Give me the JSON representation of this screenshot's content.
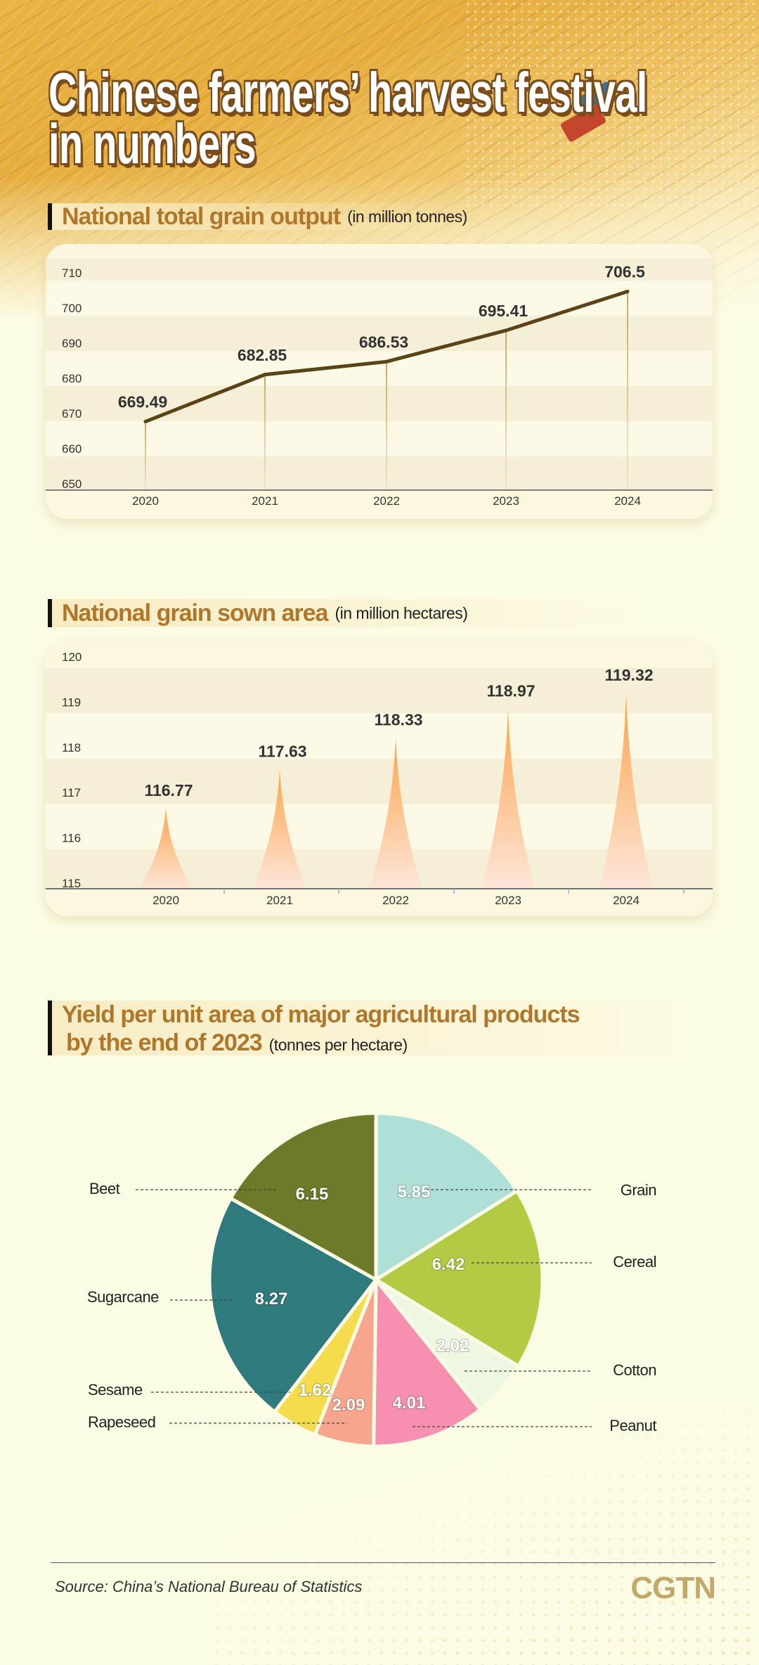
{
  "header": {
    "title_line1": "Chinese farmers’ harvest festival",
    "title_line2": "in numbers"
  },
  "sections": {
    "output": {
      "title": "National total grain output",
      "unit": "(in million tonnes)"
    },
    "area": {
      "title": "National grain sown area",
      "unit": "(in million hectares)"
    },
    "yield": {
      "title_line1": "Yield per unit area of major agricultural products",
      "title_line2": "by the end of 2023",
      "unit": "(tonnes per hectare)"
    }
  },
  "chart_data": [
    {
      "type": "line",
      "title": "National total grain output",
      "ylabel": "(in million tonnes)",
      "categories": [
        "2020",
        "2021",
        "2022",
        "2023",
        "2024"
      ],
      "values": [
        669.49,
        682.85,
        686.53,
        695.41,
        706.5
      ],
      "value_labels": [
        "669.49",
        "682.85",
        "686.53",
        "695.41",
        "706.5"
      ],
      "yticks": [
        "650",
        "660",
        "670",
        "680",
        "690",
        "700",
        "710"
      ],
      "ylim": [
        650,
        710
      ],
      "grid": "banded",
      "colors": {
        "line": "#5a4317",
        "drop": "#c9a96a"
      }
    },
    {
      "type": "bar",
      "title": "National grain sown area",
      "ylabel": "(in million hectares)",
      "categories": [
        "2020",
        "2021",
        "2022",
        "2023",
        "2024"
      ],
      "values": [
        116.77,
        117.63,
        118.33,
        118.97,
        119.32
      ],
      "value_labels": [
        "116.77",
        "117.63",
        "118.33",
        "118.97",
        "119.32"
      ],
      "yticks": [
        "115",
        "116",
        "117",
        "118",
        "119",
        "120"
      ],
      "ylim": [
        115,
        120
      ],
      "grid": "banded",
      "colors": {
        "top": "#fda44b",
        "bottom": "#fde6da"
      }
    },
    {
      "type": "pie",
      "title": "Yield per unit area of major agricultural products by the end of 2023",
      "unit": "(tonnes per hectare)",
      "slices": [
        {
          "label": "Grain",
          "value": 5.85,
          "value_label": "5.85",
          "color": "#aee0d8"
        },
        {
          "label": "Cereal",
          "value": 6.42,
          "value_label": "6.42",
          "color": "#b3cb44"
        },
        {
          "label": "Cotton",
          "value": 2.02,
          "value_label": "2.02",
          "color": "#eef7e2"
        },
        {
          "label": "Peanut",
          "value": 4.01,
          "value_label": "4.01",
          "color": "#f78fb0"
        },
        {
          "label": "Rapeseed",
          "value": 2.09,
          "value_label": "2.09",
          "color": "#f7a58c"
        },
        {
          "label": "Sesame",
          "value": 1.62,
          "value_label": "1.62",
          "color": "#f4dc4c"
        },
        {
          "label": "Sugarcane",
          "value": 8.27,
          "value_label": "8.27",
          "color": "#2f7a7c"
        },
        {
          "label": "Beet",
          "value": 6.15,
          "value_label": "6.15",
          "color": "#6c7a2a"
        }
      ]
    }
  ],
  "footer": {
    "source": "Source: China’s National Bureau of Statistics",
    "logo": "CGTN"
  },
  "colors": {
    "accent": "#b0772a",
    "background": "#fcfbe4"
  }
}
